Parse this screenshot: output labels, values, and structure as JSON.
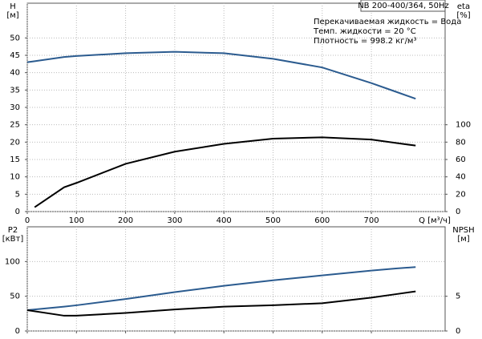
{
  "chart_data": [
    {
      "type": "line",
      "title": "NB 200-400/364, 50Hz",
      "annotations": [
        "Перекачиваемая жидкость = Вода",
        "Темп. жидкости = 20 °C",
        "Плотность = 998.2 кг/м³"
      ],
      "xlabel": "Q [м³/ч]",
      "ylabel": [
        "H",
        "[м]"
      ],
      "y2label": [
        "eta",
        "[%]"
      ],
      "x": [
        0,
        15,
        75,
        100,
        200,
        300,
        400,
        500,
        600,
        700,
        750,
        790
      ],
      "xlim": [
        0,
        850
      ],
      "xticks": [
        0,
        100,
        200,
        300,
        400,
        500,
        600,
        700
      ],
      "ylim": [
        0,
        60
      ],
      "yticks": [
        0,
        5,
        10,
        15,
        20,
        25,
        30,
        35,
        40,
        45,
        50
      ],
      "y2lim": [
        0,
        240
      ],
      "y2ticks": [
        0,
        20,
        40,
        60,
        80,
        100
      ],
      "grid": true,
      "series": [
        {
          "color": "#2b5b8f",
          "values": [
            43,
            43.3,
            44.5,
            44.8,
            45.6,
            46,
            45.6,
            44,
            41.5,
            37,
            34.5,
            32.5
          ]
        },
        {
          "color": "#000000",
          "axis": "y2",
          "values": [
            null,
            5,
            28,
            33,
            55,
            69,
            78,
            84,
            85.5,
            83,
            79,
            76
          ]
        }
      ]
    },
    {
      "type": "line",
      "ylabel": [
        "P2",
        "[кВт]"
      ],
      "y2label": [
        "NPSH",
        "[м]"
      ],
      "x": [
        0,
        75,
        100,
        200,
        300,
        400,
        500,
        600,
        700,
        750,
        790
      ],
      "xlim": [
        0,
        850
      ],
      "xticks": [
        0,
        100,
        200,
        300,
        400,
        500,
        600,
        700
      ],
      "ylim": [
        0,
        150
      ],
      "yticks": [
        0,
        50,
        100
      ],
      "y2lim": [
        0,
        15
      ],
      "y2ticks": [
        0,
        5
      ],
      "grid": true,
      "series": [
        {
          "color": "#2b5b8f",
          "values": [
            30,
            35,
            37,
            46,
            56,
            65,
            73,
            80,
            87,
            90,
            92
          ]
        },
        {
          "color": "#000000",
          "axis": "y2",
          "values": [
            3,
            2.2,
            2.2,
            2.6,
            3.1,
            3.5,
            3.7,
            4,
            4.8,
            5.3,
            5.7
          ]
        }
      ]
    }
  ]
}
